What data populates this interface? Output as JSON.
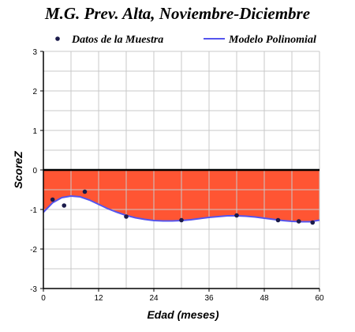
{
  "chart_data": {
    "type": "line",
    "title": "M.G. Prev. Alta, Noviembre-Diciembre",
    "xlabel": "Edad (meses)",
    "ylabel": "ScoreZ",
    "xlim": [
      0,
      60
    ],
    "ylim": [
      -3,
      3
    ],
    "x_ticks": [
      0,
      12,
      24,
      36,
      48,
      60
    ],
    "y_ticks": [
      -3,
      -2,
      -1,
      0,
      1,
      2,
      3
    ],
    "grid": true,
    "legend_position": "top",
    "reference_line_y": 0,
    "shaded_region_color": "#ff5533",
    "legend": [
      {
        "label": "Datos de la Muestra",
        "marker": "dot",
        "color": "#1a1a4a"
      },
      {
        "label": "Modelo Polinomial",
        "marker": "line",
        "color": "#5555ee"
      }
    ],
    "series": [
      {
        "name": "Datos de la Muestra",
        "kind": "scatter",
        "color": "#1a1a4a",
        "points": [
          {
            "x": 2,
            "y": -0.75
          },
          {
            "x": 4.5,
            "y": -0.9
          },
          {
            "x": 9,
            "y": -0.55
          },
          {
            "x": 18,
            "y": -1.18
          },
          {
            "x": 30,
            "y": -1.27
          },
          {
            "x": 42,
            "y": -1.15
          },
          {
            "x": 51,
            "y": -1.27
          },
          {
            "x": 55.5,
            "y": -1.3
          },
          {
            "x": 58.5,
            "y": -1.33
          }
        ]
      },
      {
        "name": "Modelo Polinomial",
        "kind": "line",
        "color": "#5555ee",
        "points": [
          {
            "x": 0,
            "y": -1.07
          },
          {
            "x": 2,
            "y": -0.83
          },
          {
            "x": 4,
            "y": -0.7
          },
          {
            "x": 6,
            "y": -0.66
          },
          {
            "x": 8,
            "y": -0.68
          },
          {
            "x": 10,
            "y": -0.76
          },
          {
            "x": 12,
            "y": -0.87
          },
          {
            "x": 14,
            "y": -0.98
          },
          {
            "x": 16,
            "y": -1.07
          },
          {
            "x": 18,
            "y": -1.15
          },
          {
            "x": 20,
            "y": -1.21
          },
          {
            "x": 22,
            "y": -1.25
          },
          {
            "x": 24,
            "y": -1.28
          },
          {
            "x": 26,
            "y": -1.29
          },
          {
            "x": 28,
            "y": -1.29
          },
          {
            "x": 30,
            "y": -1.28
          },
          {
            "x": 32,
            "y": -1.26
          },
          {
            "x": 34,
            "y": -1.23
          },
          {
            "x": 36,
            "y": -1.2
          },
          {
            "x": 38,
            "y": -1.18
          },
          {
            "x": 40,
            "y": -1.16
          },
          {
            "x": 42,
            "y": -1.16
          },
          {
            "x": 44,
            "y": -1.17
          },
          {
            "x": 46,
            "y": -1.19
          },
          {
            "x": 48,
            "y": -1.22
          },
          {
            "x": 50,
            "y": -1.25
          },
          {
            "x": 52,
            "y": -1.28
          },
          {
            "x": 54,
            "y": -1.3
          },
          {
            "x": 56,
            "y": -1.31
          },
          {
            "x": 58,
            "y": -1.31
          },
          {
            "x": 60,
            "y": -1.27
          }
        ]
      }
    ]
  }
}
